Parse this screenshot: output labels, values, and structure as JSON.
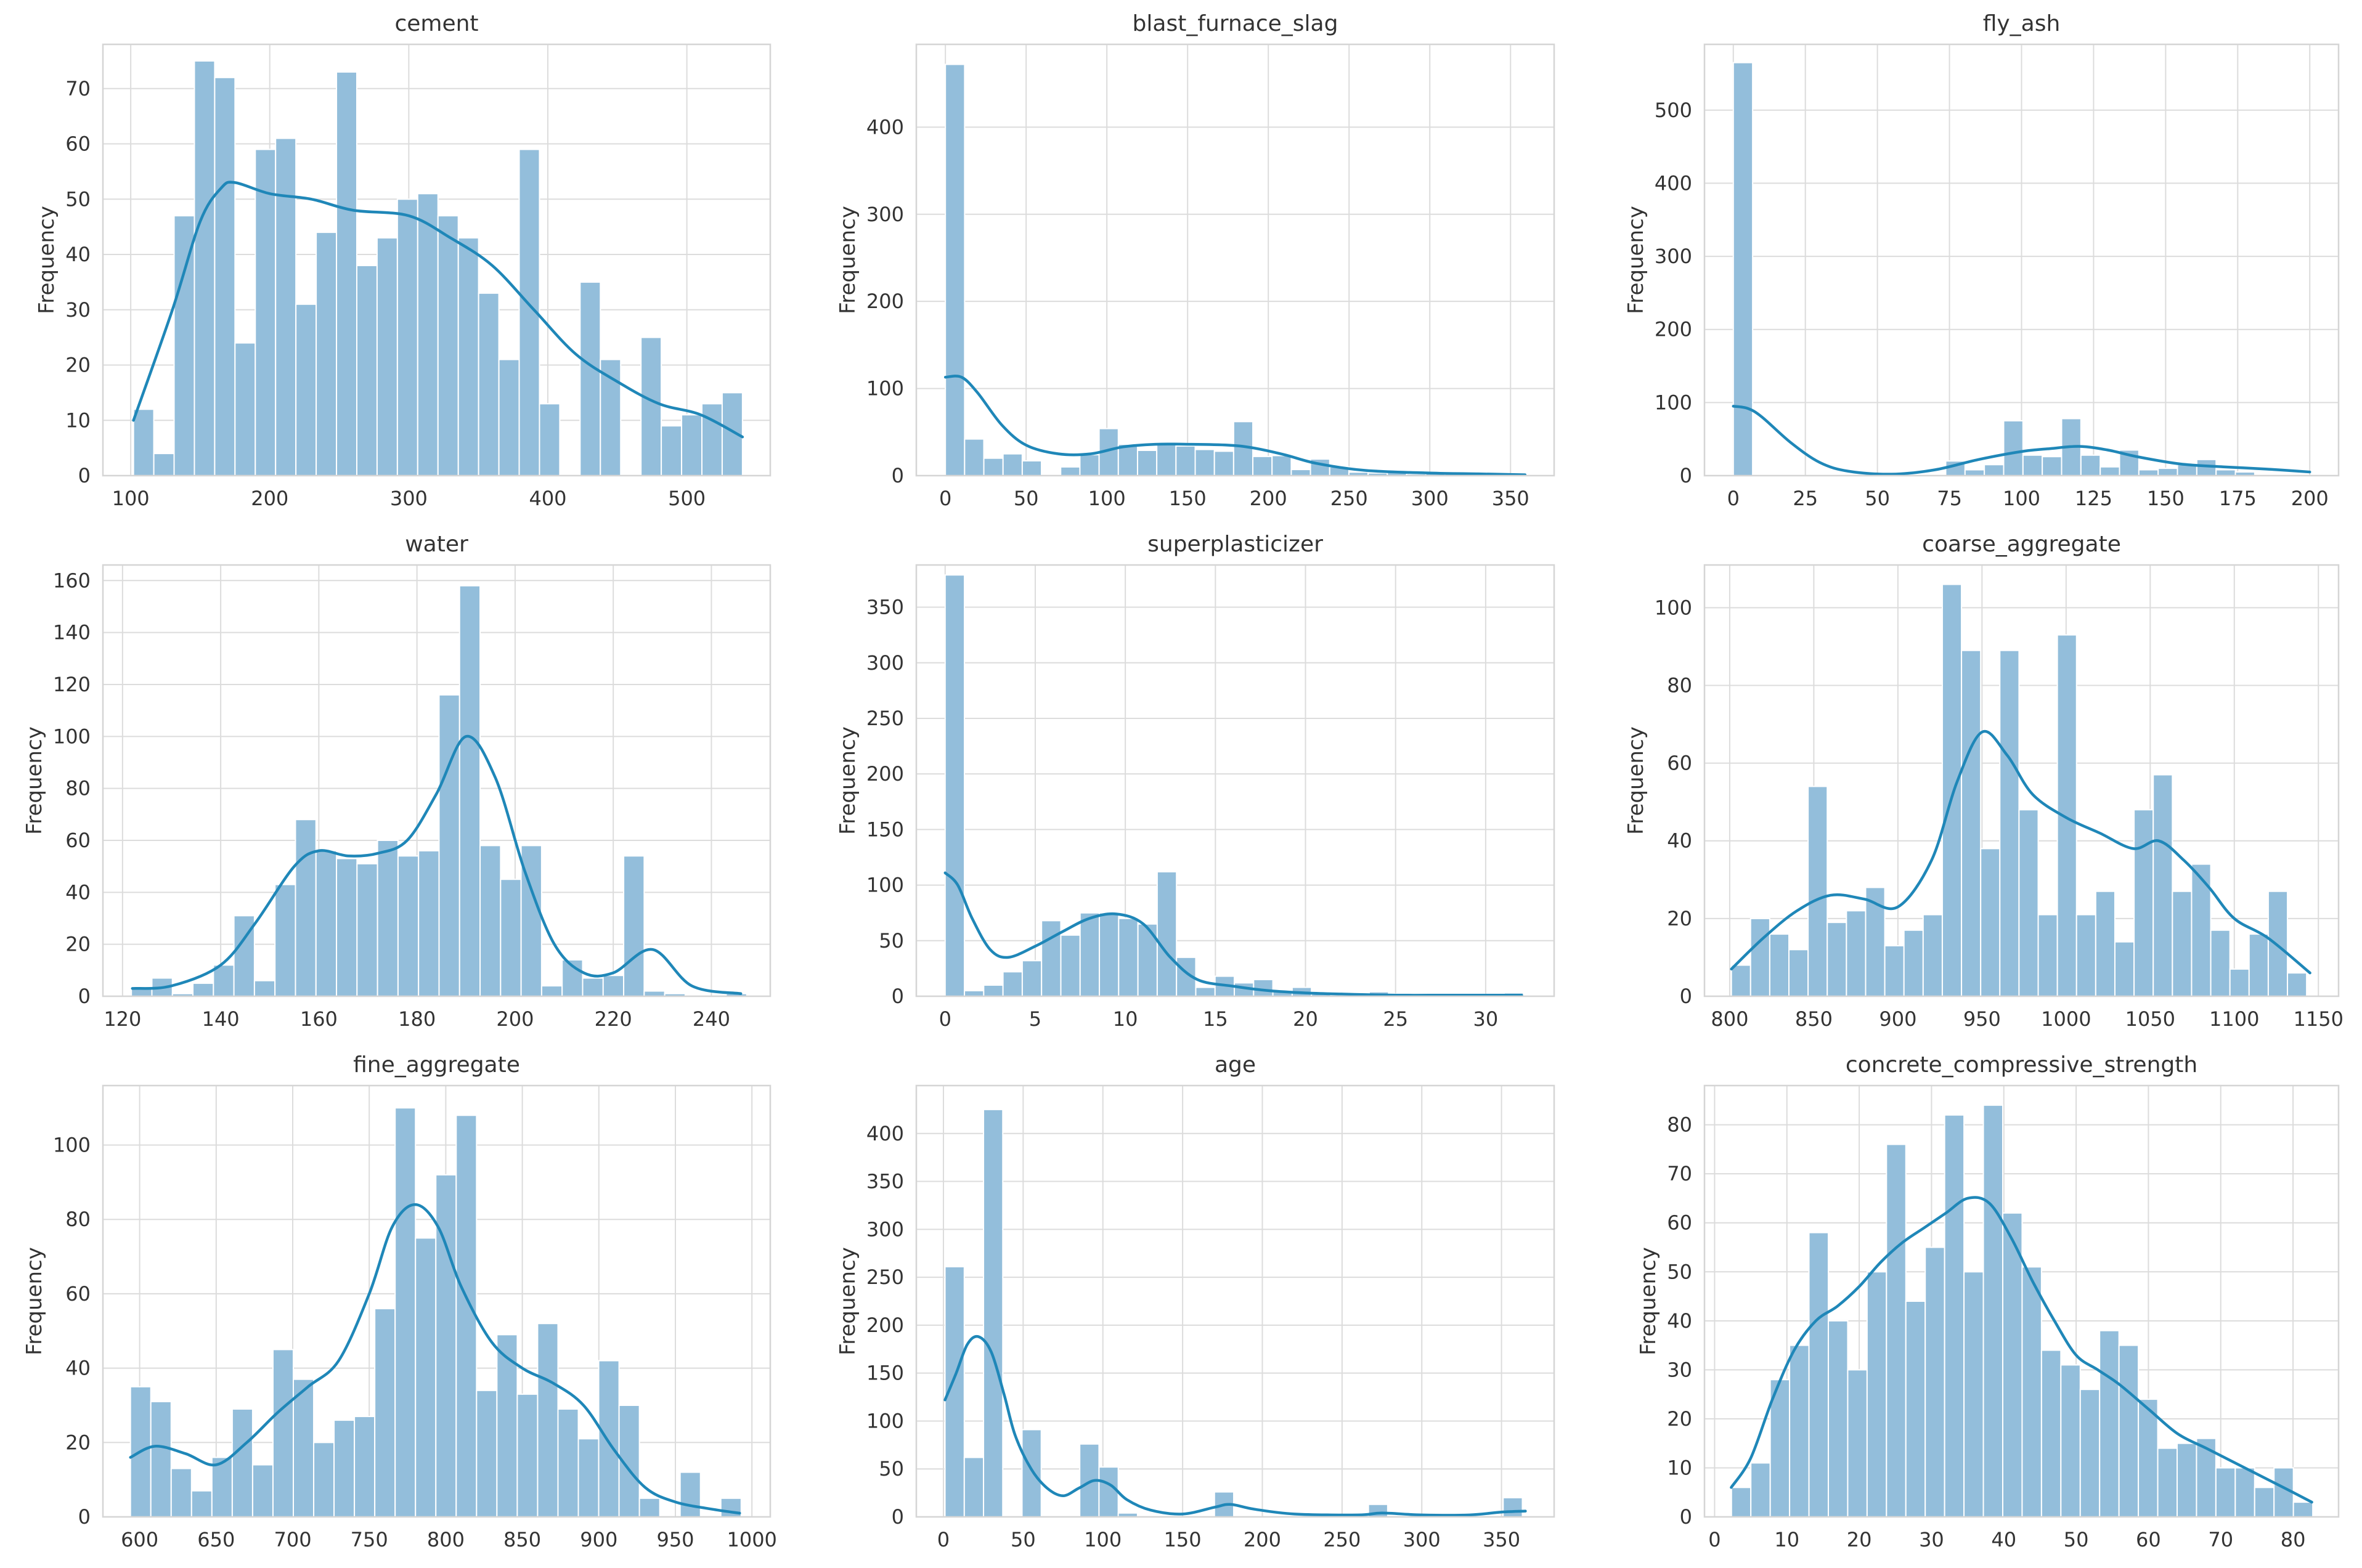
{
  "figure": {
    "background": "#ffffff"
  },
  "style": {
    "bar_color": "#93bedb",
    "bar_edge": "#ffffff",
    "kde_color": "#1f87b8",
    "grid_color": "#dcdcdc",
    "axes_edge": "#d5d5d5",
    "grid": true
  },
  "chart_data": [
    {
      "type": "bar",
      "title": "cement",
      "xlabel": "",
      "ylabel": "Frequency",
      "xlim": [
        80,
        560
      ],
      "ylim": [
        0,
        78
      ],
      "xticks": [
        100,
        200,
        300,
        400,
        500
      ],
      "yticks": [
        0,
        10,
        20,
        30,
        40,
        50,
        60,
        70
      ],
      "bins": {
        "start": 102,
        "width": 14.6,
        "counts": [
          12,
          4,
          47,
          75,
          72,
          24,
          59,
          61,
          31,
          44,
          73,
          38,
          43,
          50,
          51,
          47,
          43,
          33,
          21,
          59,
          13,
          0,
          35,
          21,
          0,
          25,
          9,
          11,
          13,
          15
        ]
      },
      "kde": {
        "x": [
          102,
          130,
          150,
          165,
          175,
          200,
          230,
          260,
          300,
          330,
          360,
          390,
          420,
          450,
          480,
          510,
          540
        ],
        "y": [
          10,
          30,
          46,
          52,
          53,
          51,
          50,
          48,
          47,
          43,
          38,
          30,
          22,
          17,
          13,
          11,
          7
        ]
      }
    },
    {
      "type": "bar",
      "title": "blast_furnace_slag",
      "xlabel": "",
      "ylabel": "Frequency",
      "xlim": [
        -18,
        377
      ],
      "ylim": [
        0,
        495
      ],
      "xticks": [
        0,
        50,
        100,
        150,
        200,
        250,
        300,
        350
      ],
      "yticks": [
        0,
        100,
        200,
        300,
        400
      ],
      "bins": {
        "start": 0,
        "width": 11.9,
        "counts": [
          472,
          42,
          20,
          25,
          17,
          0,
          10,
          24,
          54,
          36,
          29,
          38,
          34,
          30,
          28,
          62,
          22,
          23,
          7,
          19,
          10,
          4,
          3,
          5,
          2,
          3,
          2,
          1,
          1,
          1
        ]
      },
      "kde": {
        "x": [
          0,
          10,
          20,
          35,
          50,
          70,
          90,
          110,
          130,
          150,
          175,
          190,
          210,
          230,
          260,
          300,
          330,
          359
        ],
        "y": [
          113,
          113,
          95,
          58,
          35,
          25,
          25,
          33,
          36,
          36,
          35,
          32,
          24,
          14,
          6,
          3,
          2,
          1
        ]
      }
    },
    {
      "type": "bar",
      "title": "fly_ash",
      "xlabel": "",
      "ylabel": "Frequency",
      "xlim": [
        -10,
        210
      ],
      "ylim": [
        0,
        590
      ],
      "xticks": [
        0,
        25,
        50,
        75,
        100,
        125,
        150,
        175,
        200
      ],
      "yticks": [
        0,
        100,
        200,
        300,
        400,
        500
      ],
      "bins": {
        "start": 0,
        "width": 6.7,
        "counts": [
          565,
          0,
          0,
          0,
          0,
          0,
          0,
          0,
          0,
          0,
          0,
          20,
          8,
          15,
          75,
          28,
          26,
          78,
          28,
          12,
          35,
          8,
          10,
          15,
          22,
          8,
          5,
          0,
          0,
          0
        ]
      },
      "kde": {
        "x": [
          0,
          5,
          10,
          20,
          30,
          40,
          55,
          70,
          85,
          100,
          110,
          120,
          130,
          140,
          155,
          170,
          185,
          200
        ],
        "y": [
          95,
          92,
          80,
          45,
          18,
          6,
          2,
          8,
          22,
          33,
          37,
          40,
          35,
          26,
          16,
          12,
          9,
          5
        ]
      }
    },
    {
      "type": "bar",
      "title": "water",
      "xlabel": "",
      "ylabel": "Frequency",
      "xlim": [
        116,
        252
      ],
      "ylim": [
        0,
        166
      ],
      "xticks": [
        120,
        140,
        160,
        180,
        200,
        220,
        240
      ],
      "yticks": [
        0,
        20,
        40,
        60,
        80,
        100,
        120,
        140,
        160
      ],
      "bins": {
        "start": 121.8,
        "width": 4.18,
        "counts": [
          3,
          7,
          1,
          5,
          12,
          31,
          6,
          43,
          68,
          56,
          53,
          51,
          60,
          54,
          56,
          116,
          158,
          58,
          45,
          58,
          4,
          14,
          7,
          8,
          54,
          2,
          1,
          0,
          0,
          1
        ]
      },
      "kde": {
        "x": [
          122,
          130,
          140,
          147,
          155,
          160,
          166,
          172,
          178,
          184,
          190,
          196,
          202,
          208,
          214,
          220,
          228,
          236,
          246
        ],
        "y": [
          3,
          4,
          12,
          28,
          50,
          56,
          54,
          55,
          60,
          78,
          100,
          84,
          48,
          20,
          9,
          9,
          18,
          4,
          1
        ]
      }
    },
    {
      "type": "bar",
      "title": "superplasticizer",
      "xlabel": "",
      "ylabel": "Frequency",
      "xlim": [
        -1.6,
        33.8
      ],
      "ylim": [
        0,
        388
      ],
      "xticks": [
        0,
        5,
        10,
        15,
        20,
        25,
        30
      ],
      "yticks": [
        0,
        50,
        100,
        150,
        200,
        250,
        300,
        350
      ],
      "bins": {
        "start": 0,
        "width": 1.07,
        "counts": [
          379,
          5,
          10,
          22,
          32,
          68,
          55,
          75,
          75,
          70,
          65,
          112,
          35,
          8,
          18,
          12,
          15,
          4,
          8,
          2,
          1,
          3,
          4,
          2,
          1,
          1,
          1,
          2,
          0,
          3
        ]
      },
      "kde": {
        "x": [
          0,
          0.7,
          1.5,
          2.5,
          3.5,
          5,
          6.5,
          8,
          9.5,
          11,
          12.5,
          14,
          16,
          18,
          20,
          22,
          25,
          28,
          32
        ],
        "y": [
          111,
          100,
          70,
          42,
          35,
          45,
          58,
          70,
          74,
          65,
          35,
          15,
          9,
          5,
          3,
          2,
          1,
          1,
          1
        ]
      }
    },
    {
      "type": "bar",
      "title": "coarse_aggregate",
      "xlabel": "",
      "ylabel": "Frequency",
      "xlim": [
        785,
        1162
      ],
      "ylim": [
        0,
        111
      ],
      "xticks": [
        800,
        850,
        900,
        950,
        1000,
        1050,
        1100,
        1150
      ],
      "yticks": [
        0,
        20,
        40,
        60,
        80,
        100
      ],
      "bins": {
        "start": 801,
        "width": 11.4,
        "counts": [
          8,
          20,
          16,
          12,
          54,
          19,
          22,
          28,
          13,
          17,
          21,
          106,
          89,
          38,
          89,
          48,
          21,
          93,
          21,
          27,
          14,
          48,
          57,
          27,
          34,
          17,
          7,
          16,
          27,
          6
        ]
      },
      "kde": {
        "x": [
          801,
          820,
          840,
          860,
          880,
          900,
          920,
          935,
          950,
          965,
          980,
          1000,
          1020,
          1040,
          1055,
          1070,
          1085,
          1100,
          1120,
          1145
        ],
        "y": [
          7,
          15,
          22,
          26,
          25,
          23,
          35,
          55,
          68,
          62,
          52,
          46,
          42,
          38,
          40,
          35,
          28,
          20,
          15,
          6
        ]
      }
    },
    {
      "type": "bar",
      "title": "fine_aggregate",
      "xlabel": "",
      "ylabel": "Frequency",
      "xlim": [
        576,
        1012
      ],
      "ylim": [
        0,
        116
      ],
      "xticks": [
        600,
        650,
        700,
        750,
        800,
        850,
        900,
        950,
        1000
      ],
      "yticks": [
        0,
        20,
        40,
        60,
        80,
        100
      ],
      "bins": {
        "start": 594,
        "width": 13.3,
        "counts": [
          35,
          31,
          13,
          7,
          16,
          29,
          14,
          45,
          37,
          20,
          26,
          27,
          56,
          110,
          75,
          92,
          108,
          34,
          49,
          33,
          52,
          29,
          21,
          42,
          30,
          5,
          0,
          12,
          0,
          5
        ]
      },
      "kde": {
        "x": [
          594,
          610,
          630,
          650,
          670,
          690,
          710,
          730,
          750,
          765,
          780,
          795,
          810,
          830,
          850,
          870,
          890,
          910,
          930,
          950,
          975,
          992
        ],
        "y": [
          16,
          19,
          17,
          14,
          20,
          28,
          35,
          42,
          60,
          78,
          84,
          78,
          62,
          47,
          40,
          36,
          30,
          18,
          8,
          4,
          2,
          1
        ]
      }
    },
    {
      "type": "bar",
      "title": "age",
      "xlabel": "",
      "ylabel": "Frequency",
      "xlim": [
        -17,
        383
      ],
      "ylim": [
        0,
        450
      ],
      "xticks": [
        0,
        50,
        100,
        150,
        200,
        250,
        300,
        350
      ],
      "yticks": [
        0,
        50,
        100,
        150,
        200,
        250,
        300,
        350,
        400
      ],
      "bins": {
        "start": 1,
        "width": 12.07,
        "counts": [
          261,
          62,
          425,
          0,
          91,
          0,
          0,
          76,
          52,
          4,
          0,
          0,
          0,
          0,
          26,
          0,
          0,
          0,
          0,
          0,
          0,
          0,
          13,
          0,
          0,
          0,
          0,
          0,
          0,
          20
        ]
      },
      "kde": {
        "x": [
          1,
          8,
          15,
          22,
          30,
          38,
          45,
          55,
          65,
          75,
          85,
          95,
          105,
          115,
          130,
          150,
          170,
          180,
          195,
          220,
          260,
          275,
          300,
          330,
          350,
          365
        ],
        "y": [
          122,
          150,
          180,
          188,
          172,
          128,
          85,
          50,
          30,
          22,
          30,
          38,
          33,
          18,
          7,
          3,
          10,
          13,
          8,
          3,
          2,
          4,
          2,
          2,
          5,
          6
        ]
      }
    },
    {
      "type": "bar",
      "title": "concrete_compressive_strength",
      "xlabel": "",
      "ylabel": "Frequency",
      "xlim": [
        -1.4,
        86.3
      ],
      "ylim": [
        0,
        88
      ],
      "xticks": [
        0,
        10,
        20,
        30,
        40,
        50,
        60,
        70,
        80
      ],
      "yticks": [
        0,
        10,
        20,
        30,
        40,
        50,
        60,
        70,
        80
      ],
      "bins": {
        "start": 2.33,
        "width": 2.68,
        "counts": [
          6,
          11,
          28,
          35,
          58,
          40,
          30,
          50,
          76,
          44,
          55,
          82,
          50,
          84,
          62,
          51,
          34,
          31,
          26,
          38,
          35,
          24,
          14,
          15,
          16,
          10,
          10,
          6,
          10,
          3
        ]
      },
      "kde": {
        "x": [
          2.3,
          5,
          8,
          11,
          14,
          17,
          20,
          23,
          26,
          29,
          32,
          35,
          38,
          41,
          44,
          47,
          50,
          53,
          56,
          60,
          64,
          68,
          72,
          76,
          80,
          82.6
        ],
        "y": [
          6,
          12,
          24,
          34,
          40,
          43,
          47,
          52,
          56,
          59,
          62,
          65,
          64,
          57,
          48,
          40,
          33,
          30,
          27,
          22,
          17,
          14,
          11,
          8,
          5,
          3
        ]
      }
    }
  ]
}
